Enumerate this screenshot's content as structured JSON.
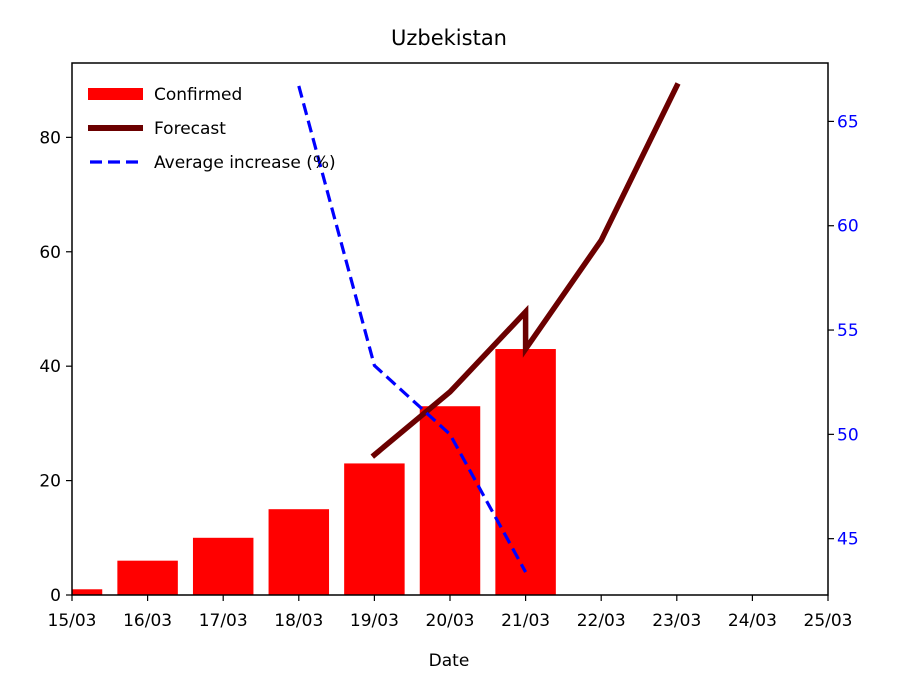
{
  "chart_data": {
    "type": "bar",
    "title": "Uzbekistan",
    "xlabel": "Date",
    "ylabel": "",
    "x_ticks": [
      "15/03",
      "16/03",
      "17/03",
      "18/03",
      "19/03",
      "20/03",
      "21/03",
      "22/03",
      "23/03",
      "24/03",
      "25/03"
    ],
    "ylim": [
      0,
      93
    ],
    "y_ticks": [
      0,
      20,
      40,
      60,
      80
    ],
    "y2lim": [
      42.3,
      67.8
    ],
    "y2_ticks": [
      45,
      50,
      55,
      60,
      65
    ],
    "series": [
      {
        "name": "Confirmed",
        "kind": "bar",
        "axis": "left",
        "color": "#ff0000",
        "x": [
          0,
          1,
          2,
          3,
          4,
          5,
          6
        ],
        "values": [
          1,
          6,
          10,
          15,
          23,
          33,
          43
        ]
      },
      {
        "name": "Forecast",
        "kind": "line",
        "axis": "left",
        "color": "#6b0000",
        "style": "solid",
        "x": [
          4,
          5,
          6,
          6,
          7,
          8
        ],
        "values": [
          24.5,
          35.5,
          49.5,
          43,
          62,
          89
        ]
      },
      {
        "name": "Average increase (%)",
        "kind": "line",
        "axis": "right",
        "color": "#0000ff",
        "style": "dashed",
        "x": [
          3,
          4,
          5,
          6
        ],
        "values": [
          66.7,
          53.3,
          50.0,
          43.4
        ]
      }
    ],
    "legend_position": "top-left",
    "right_axis_color": "#0000ff"
  }
}
